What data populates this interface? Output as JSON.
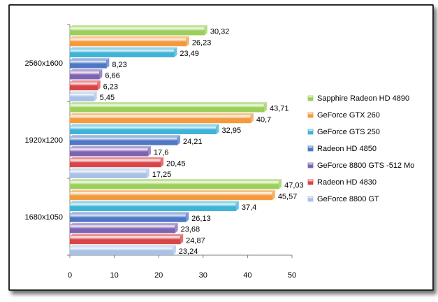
{
  "chart_data": {
    "type": "bar",
    "orientation": "horizontal",
    "categories": [
      "2560x1600",
      "1920x1200",
      "1680x1050"
    ],
    "series": [
      {
        "name": "Sapphire Radeon HD 4890",
        "color": "#9bcf5a",
        "values": [
          30.32,
          43.71,
          47.03
        ],
        "labels": [
          "30,32",
          "43,71",
          "47,03"
        ]
      },
      {
        "name": "GeForce GTX 260",
        "color": "#f39a3d",
        "values": [
          26.23,
          40.7,
          45.57
        ],
        "labels": [
          "26,23",
          "40,7",
          "45,57"
        ]
      },
      {
        "name": "GeForce GTS 250",
        "color": "#3fb3d8",
        "values": [
          23.49,
          32.95,
          37.4
        ],
        "labels": [
          "23,49",
          "32,95",
          "37,4"
        ]
      },
      {
        "name": "Radeon HD 4850",
        "color": "#4e78c6",
        "values": [
          8.23,
          24.21,
          26.13
        ],
        "labels": [
          "8,23",
          "24,21",
          "26,13"
        ]
      },
      {
        "name": "GeForce 8800 GTS -512 Mo",
        "color": "#7f63b3",
        "values": [
          6.66,
          17.6,
          23.68
        ],
        "labels": [
          "6,66",
          "17,6",
          "23,68"
        ]
      },
      {
        "name": "Radeon HD 4830",
        "color": "#d94447",
        "values": [
          6.23,
          20.45,
          24.87
        ],
        "labels": [
          "6,23",
          "20,45",
          "24,87"
        ]
      },
      {
        "name": "GeForce 8800 GT",
        "color": "#a9c1e6",
        "values": [
          5.45,
          17.25,
          23.24
        ],
        "labels": [
          "5,45",
          "17,25",
          "23,24"
        ]
      }
    ],
    "xlim": [
      0,
      50
    ],
    "xticks": [
      "0",
      "10",
      "20",
      "30",
      "40",
      "50"
    ],
    "grid": false,
    "legend_position": "right"
  }
}
